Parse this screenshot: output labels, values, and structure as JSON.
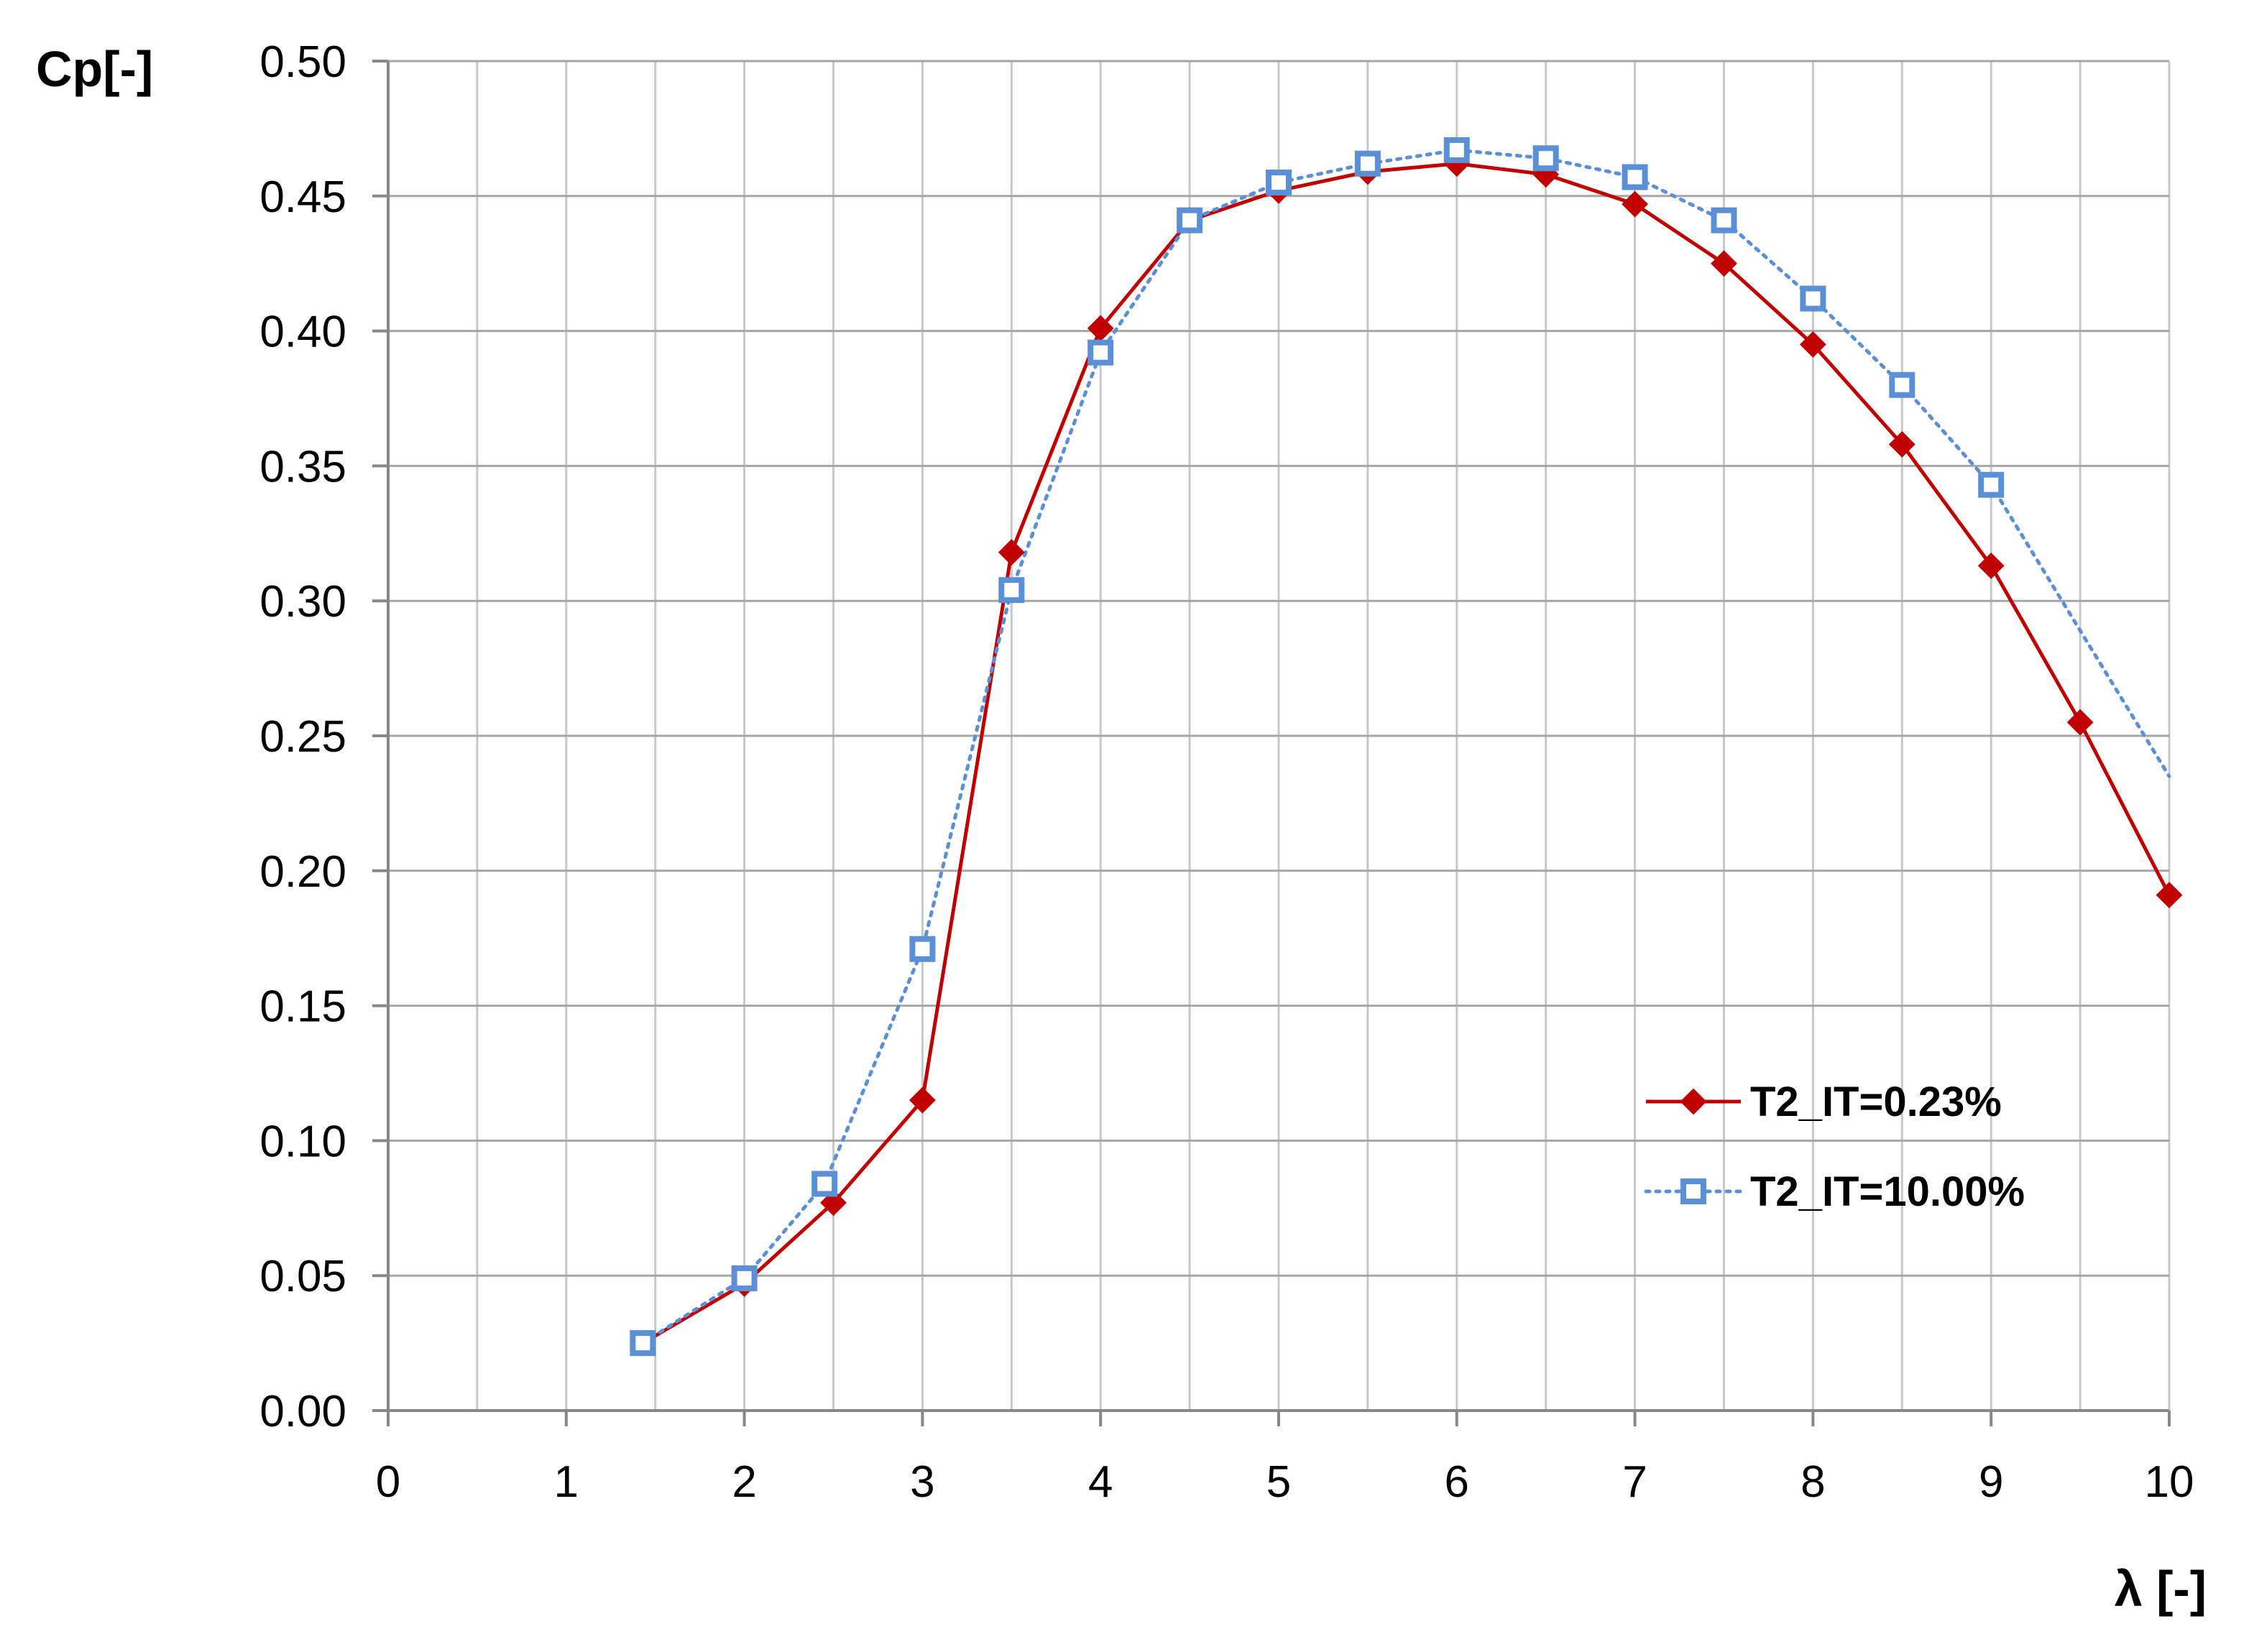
{
  "chart_data": {
    "type": "line",
    "title": "",
    "xlabel": "λ [-]",
    "ylabel": "Cp[-]",
    "xlim": [
      0,
      10
    ],
    "ylim": [
      0,
      0.5
    ],
    "xticks": [
      0,
      1,
      2,
      3,
      4,
      5,
      6,
      7,
      8,
      9,
      10
    ],
    "xtick_labels": [
      "0",
      "1",
      "2",
      "3",
      "4",
      "5",
      "6",
      "7",
      "8",
      "9",
      "10"
    ],
    "yticks": [
      0,
      0.05,
      0.1,
      0.15,
      0.2,
      0.25,
      0.3,
      0.35,
      0.4,
      0.45,
      0.5
    ],
    "ytick_labels": [
      "0.00",
      "0.05",
      "0.10",
      "0.15",
      "0.20",
      "0.25",
      "0.30",
      "0.35",
      "0.40",
      "0.45",
      "0.50"
    ],
    "grid": true,
    "x_minor_gridlines": true,
    "legend_position": "lower-right",
    "series": [
      {
        "name": "T2_IT=0.23%",
        "color": "#c00000",
        "line_style": "solid",
        "marker": "diamond",
        "x": [
          1.43,
          2.0,
          2.5,
          3.0,
          3.5,
          4.0,
          4.5,
          5.0,
          5.5,
          6.0,
          6.5,
          7.0,
          7.5,
          8.0,
          8.5,
          9.0,
          9.5,
          10.0
        ],
        "y": [
          0.025,
          0.047,
          0.077,
          0.115,
          0.318,
          0.401,
          0.441,
          0.452,
          0.459,
          0.462,
          0.458,
          0.447,
          0.425,
          0.395,
          0.358,
          0.313,
          0.255,
          0.191
        ]
      },
      {
        "name": "T2_IT=10.00%",
        "color": "#5b8fd6",
        "line_style": "dotted",
        "marker": "square-open",
        "x": [
          1.43,
          2.0,
          2.45,
          3.0,
          3.5,
          4.0,
          4.5,
          5.0,
          5.5,
          6.0,
          6.5,
          7.0,
          7.5,
          8.0,
          8.5,
          9.0,
          10.0
        ],
        "y": [
          0.025,
          0.049,
          0.084,
          0.171,
          0.304,
          0.392,
          0.441,
          0.455,
          0.462,
          0.467,
          0.464,
          0.457,
          0.441,
          0.412,
          0.38,
          0.343,
          0.235
        ],
        "marker_hidden_indices": [
          16
        ]
      }
    ]
  }
}
